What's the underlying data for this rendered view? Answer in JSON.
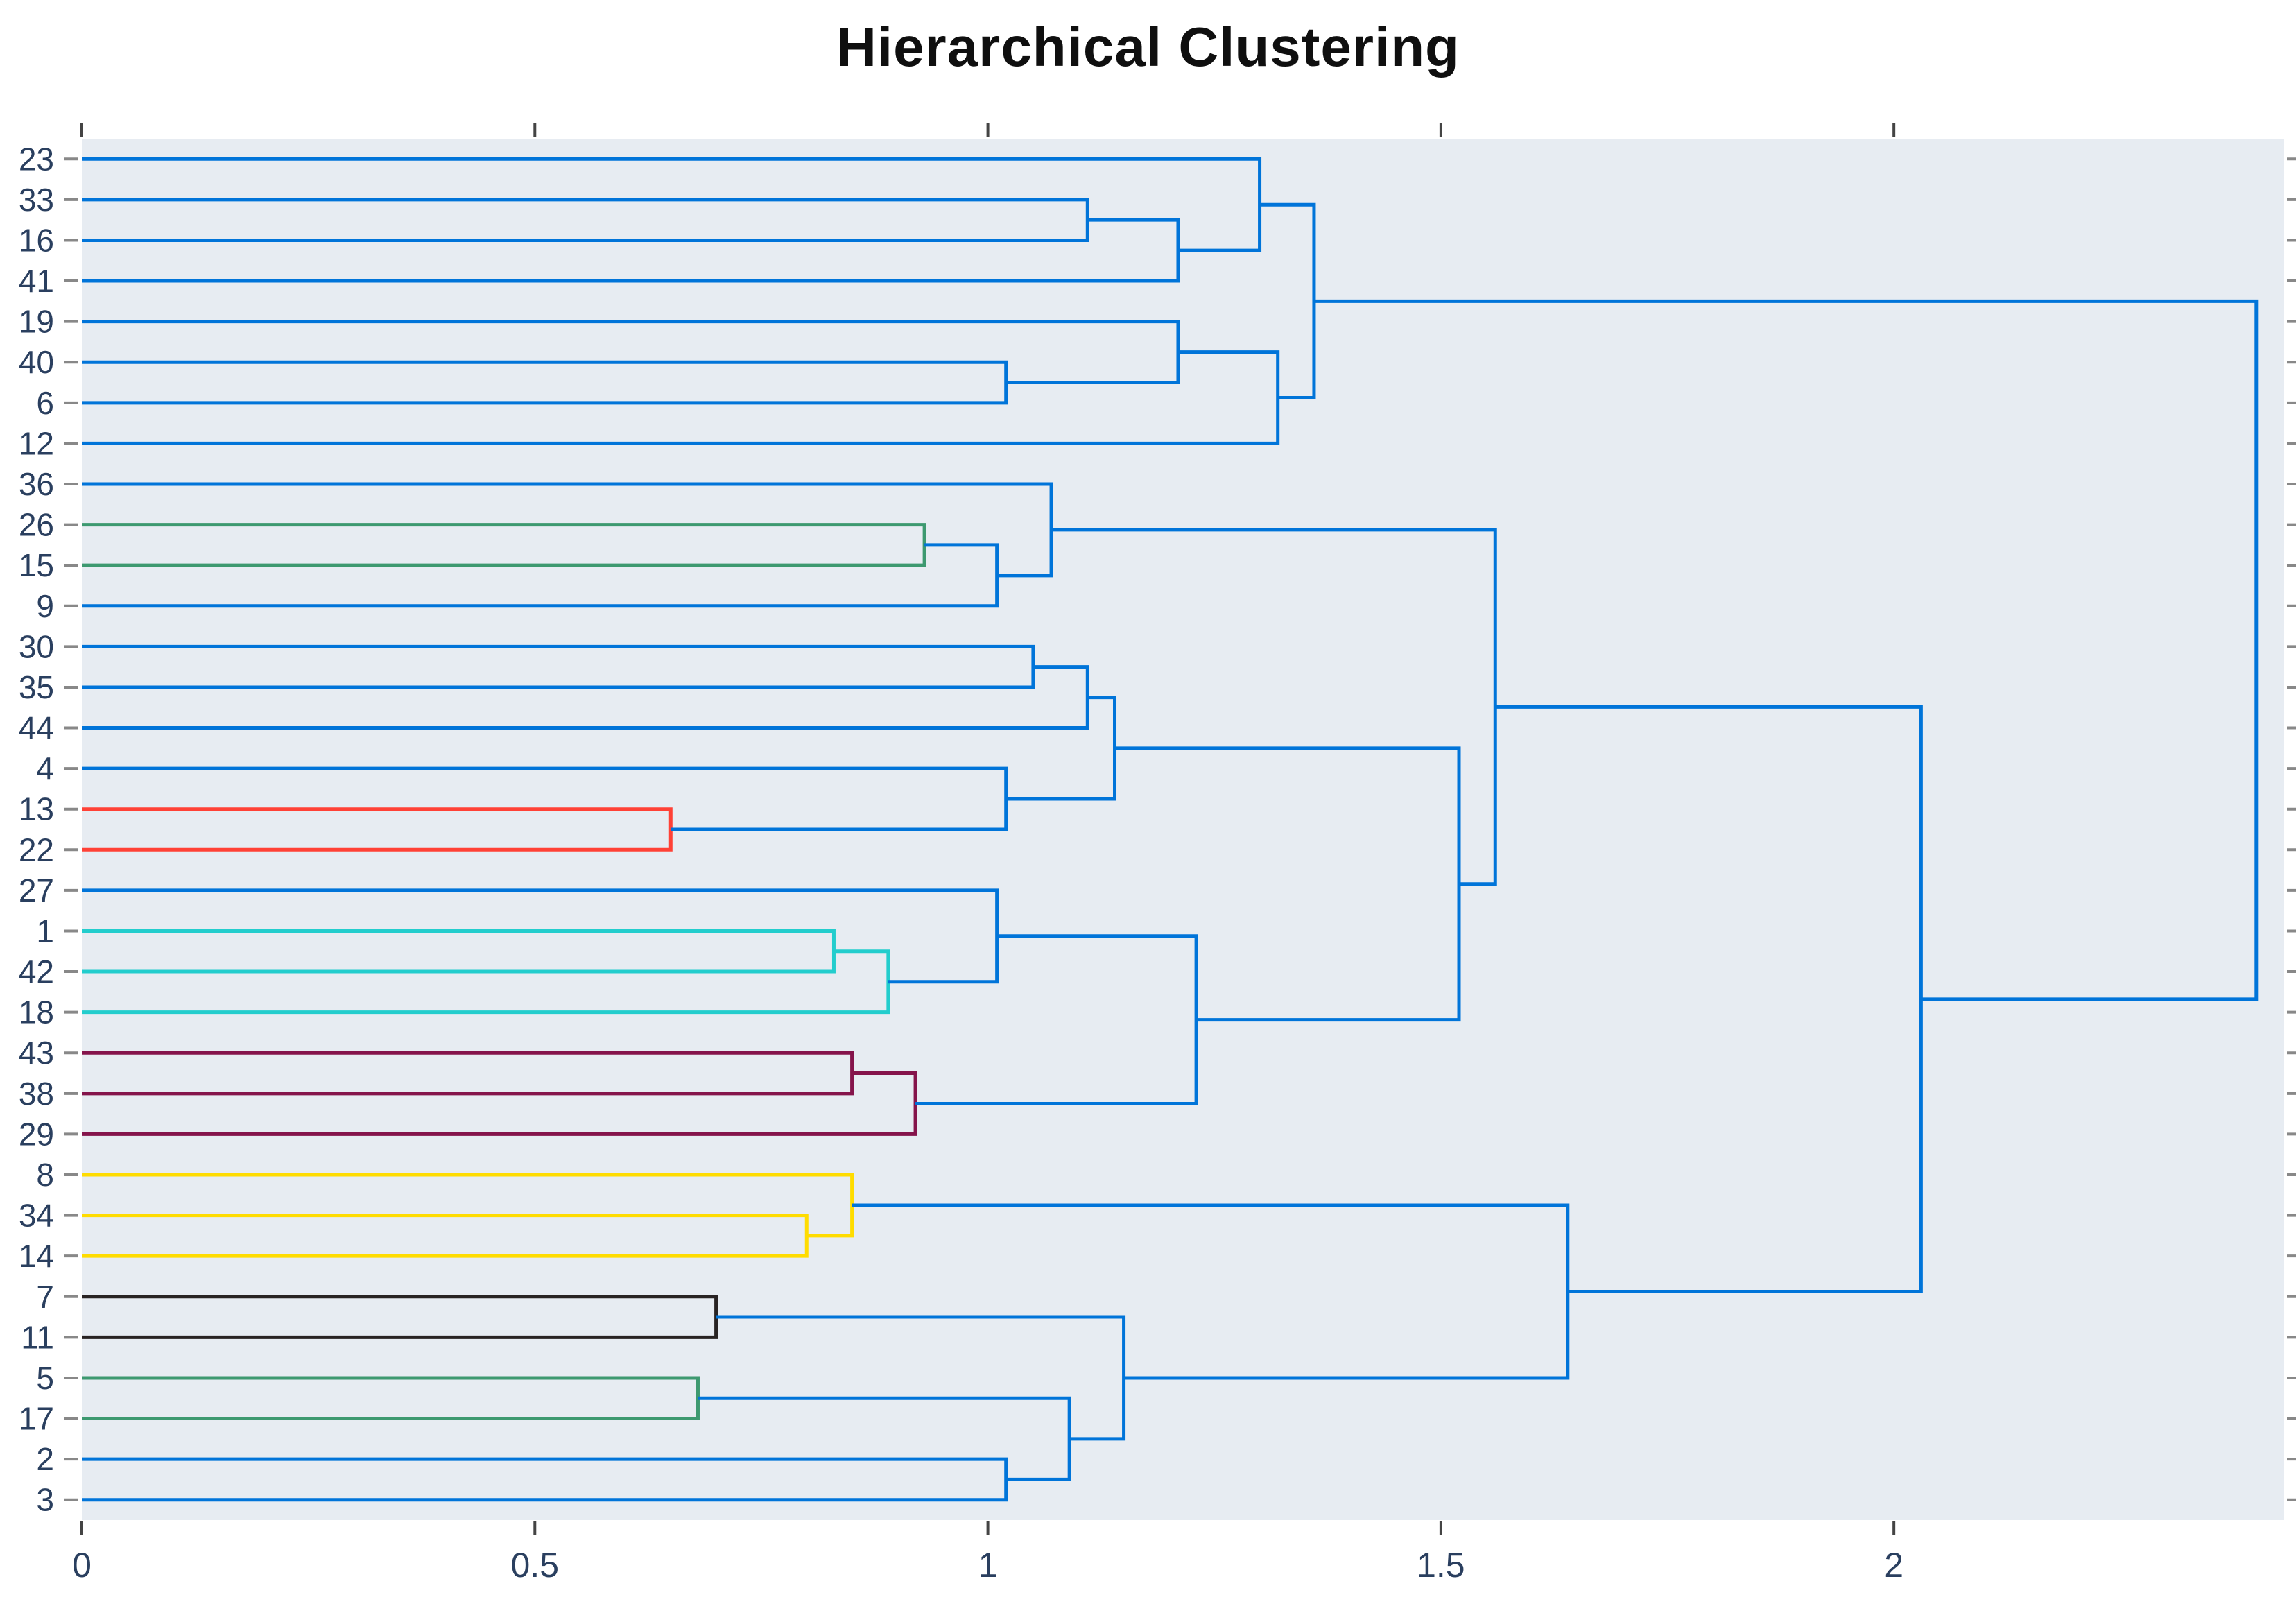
{
  "title": "Hierarchical Clustering",
  "chart_data": {
    "type": "dendrogram",
    "orientation": "horizontal",
    "title": "Hierarchical Clustering",
    "x_axis": {
      "tick_labels": [
        "0",
        "0.5",
        "1",
        "1.5",
        "2"
      ],
      "tick_values": [
        0,
        0.5,
        1,
        1.5,
        2
      ],
      "range": [
        0,
        2.43
      ],
      "grid": false
    },
    "y_axis": {
      "leaves": [
        "23",
        "33",
        "16",
        "41",
        "19",
        "40",
        "6",
        "12",
        "36",
        "26",
        "15",
        "9",
        "30",
        "35",
        "44",
        "4",
        "13",
        "22",
        "27",
        "1",
        "42",
        "18",
        "43",
        "38",
        "29",
        "8",
        "34",
        "14",
        "7",
        "11",
        "5",
        "17",
        "2",
        "3"
      ]
    },
    "palette": {
      "blue": "rgb(0,116,217)",
      "cyan": "rgb(35,205,205)",
      "green": "rgb(61,153,112)",
      "black": "rgb(40,35,35)",
      "maroon": "rgb(133,20,75)",
      "red": "rgb(255,65,54)",
      "yellow": "rgb(255,220,0)"
    },
    "merges": [
      {
        "id": "m1",
        "children": [
          "13",
          "22"
        ],
        "height": 0.65,
        "color": "red"
      },
      {
        "id": "m2",
        "children": [
          "5",
          "17"
        ],
        "height": 0.68,
        "color": "green"
      },
      {
        "id": "m3",
        "children": [
          "7",
          "11"
        ],
        "height": 0.7,
        "color": "black"
      },
      {
        "id": "m4",
        "children": [
          "34",
          "14"
        ],
        "height": 0.8,
        "color": "yellow"
      },
      {
        "id": "m5",
        "children": [
          "1",
          "42"
        ],
        "height": 0.83,
        "color": "cyan"
      },
      {
        "id": "m6",
        "children": [
          "8",
          "m4"
        ],
        "height": 0.85,
        "color": "yellow"
      },
      {
        "id": "m7",
        "children": [
          "43",
          "38"
        ],
        "height": 0.85,
        "color": "maroon"
      },
      {
        "id": "m8",
        "children": [
          "m5",
          "18"
        ],
        "height": 0.89,
        "color": "cyan"
      },
      {
        "id": "m9",
        "children": [
          "m7",
          "29"
        ],
        "height": 0.92,
        "color": "maroon"
      },
      {
        "id": "m10",
        "children": [
          "26",
          "15"
        ],
        "height": 0.93,
        "color": "green"
      },
      {
        "id": "m11",
        "children": [
          "m10",
          "9"
        ],
        "height": 1.01,
        "color": "blue"
      },
      {
        "id": "m12",
        "children": [
          "4",
          "m1"
        ],
        "height": 1.02,
        "color": "blue"
      },
      {
        "id": "m13",
        "children": [
          "27",
          "m8"
        ],
        "height": 1.01,
        "color": "blue"
      },
      {
        "id": "m14",
        "children": [
          "2",
          "3"
        ],
        "height": 1.02,
        "color": "blue"
      },
      {
        "id": "m15",
        "children": [
          "40",
          "6"
        ],
        "height": 1.02,
        "color": "blue"
      },
      {
        "id": "m16",
        "children": [
          "30",
          "35"
        ],
        "height": 1.05,
        "color": "blue"
      },
      {
        "id": "m17",
        "children": [
          "36",
          "m11"
        ],
        "height": 1.07,
        "color": "blue"
      },
      {
        "id": "m18",
        "children": [
          "m2",
          "m14"
        ],
        "height": 1.09,
        "color": "blue"
      },
      {
        "id": "m19",
        "children": [
          "33",
          "16"
        ],
        "height": 1.11,
        "color": "blue"
      },
      {
        "id": "m20",
        "children": [
          "m16",
          "44"
        ],
        "height": 1.11,
        "color": "blue"
      },
      {
        "id": "m21",
        "children": [
          "m20",
          "m12"
        ],
        "height": 1.14,
        "color": "blue"
      },
      {
        "id": "m22",
        "children": [
          "m3",
          "m18"
        ],
        "height": 1.15,
        "color": "blue"
      },
      {
        "id": "m23",
        "children": [
          "19",
          "m15"
        ],
        "height": 1.21,
        "color": "blue"
      },
      {
        "id": "m24",
        "children": [
          "m19",
          "41"
        ],
        "height": 1.21,
        "color": "blue"
      },
      {
        "id": "m25",
        "children": [
          "m13",
          "m9"
        ],
        "height": 1.23,
        "color": "blue"
      },
      {
        "id": "m26",
        "children": [
          "23",
          "m24"
        ],
        "height": 1.3,
        "color": "blue"
      },
      {
        "id": "m27",
        "children": [
          "m23",
          "12"
        ],
        "height": 1.32,
        "color": "blue"
      },
      {
        "id": "m28",
        "children": [
          "m26",
          "m27"
        ],
        "height": 1.36,
        "color": "blue"
      },
      {
        "id": "m29",
        "children": [
          "m21",
          "m25"
        ],
        "height": 1.52,
        "color": "blue"
      },
      {
        "id": "m30",
        "children": [
          "m17",
          "m29"
        ],
        "height": 1.56,
        "color": "blue"
      },
      {
        "id": "m31",
        "children": [
          "m6",
          "m22"
        ],
        "height": 1.64,
        "color": "blue"
      },
      {
        "id": "m32",
        "children": [
          "m30",
          "m31"
        ],
        "height": 2.03,
        "color": "blue"
      },
      {
        "id": "m33",
        "children": [
          "m28",
          "m32"
        ],
        "height": 2.4,
        "color": "blue"
      }
    ],
    "style": {
      "plot_bg": "#E7ECF2",
      "paper_bg": "#ffffff",
      "tick_label_color": "#2a3f5f",
      "major_tick_color": "#444444",
      "leaf_tick_color": "#888888",
      "title_color": "#0f0f0f",
      "line_width": 5
    }
  }
}
